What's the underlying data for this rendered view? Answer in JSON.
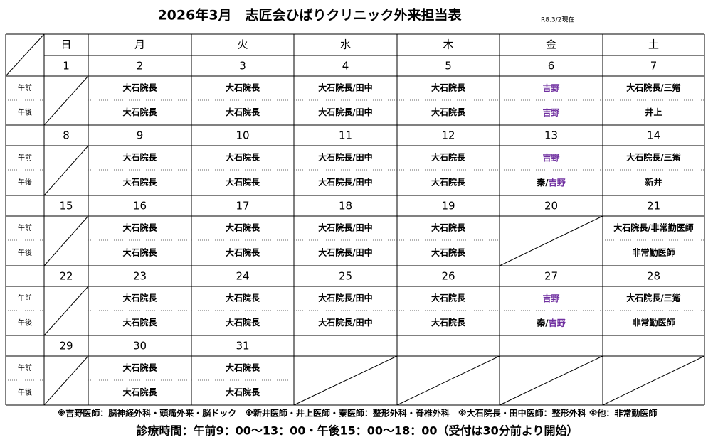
{
  "title": "2026年3月　志匠会ひばりクリニック外来担当表",
  "updated": "R8.3/2現在",
  "weekdays": [
    {
      "text": "日",
      "color": "#e03030"
    },
    "月",
    "火",
    "水",
    "木",
    "金",
    {
      "text": "土",
      "color": "#2e75b6"
    }
  ],
  "period_labels": [
    "午前",
    "午後"
  ],
  "weeks": [
    {
      "days": [
        {
          "text": "1",
          "color": "#e03030"
        },
        "2",
        "3",
        "4",
        "5",
        "6",
        {
          "text": "7",
          "color": "#2e75b6"
        }
      ],
      "am": [
        null,
        "大石院長",
        "大石院長",
        "大石院長/田中",
        "大石院長",
        [
          {
            "text": "吉野",
            "color": "#7030a0"
          }
        ],
        "大石院長/三觜"
      ],
      "pm": [
        null,
        "大石院長",
        "大石院長",
        "大石院長/田中",
        "大石院長",
        [
          {
            "text": "吉野",
            "color": "#7030a0"
          }
        ],
        "井上"
      ]
    },
    {
      "days": [
        {
          "text": "8",
          "color": "#e03030"
        },
        "9",
        "10",
        "11",
        "12",
        "13",
        {
          "text": "14",
          "color": "#2e75b6"
        }
      ],
      "am": [
        null,
        "大石院長",
        "大石院長",
        "大石院長/田中",
        "大石院長",
        [
          {
            "text": "吉野",
            "color": "#7030a0"
          }
        ],
        "大石院長/三觜"
      ],
      "pm": [
        null,
        "大石院長",
        "大石院長",
        "大石院長/田中",
        "大石院長",
        [
          "秦/",
          {
            "text": "吉野",
            "color": "#7030a0"
          }
        ],
        "新井"
      ]
    },
    {
      "days": [
        {
          "text": "15",
          "color": "#e03030"
        },
        "16",
        "17",
        "18",
        "19",
        {
          "text": "20",
          "color": "#e03030"
        },
        {
          "text": "21",
          "color": "#2e75b6"
        }
      ],
      "am": [
        null,
        "大石院長",
        "大石院長",
        "大石院長/田中",
        "大石院長",
        null,
        "大石院長/非常勤医師"
      ],
      "pm": [
        null,
        "大石院長",
        "大石院長",
        "大石院長/田中",
        "大石院長",
        null,
        "非常勤医師"
      ]
    },
    {
      "days": [
        {
          "text": "22",
          "color": "#e03030"
        },
        "23",
        "24",
        "25",
        "26",
        "27",
        {
          "text": "28",
          "color": "#2e75b6"
        }
      ],
      "am": [
        null,
        "大石院長",
        "大石院長",
        "大石院長/田中",
        "大石院長",
        [
          {
            "text": "吉野",
            "color": "#7030a0"
          }
        ],
        "大石院長/三觜"
      ],
      "pm": [
        null,
        "大石院長",
        "大石院長",
        "大石院長/田中",
        "大石院長",
        [
          "秦/",
          {
            "text": "吉野",
            "color": "#7030a0"
          }
        ],
        "非常勤医師"
      ]
    },
    {
      "days": [
        {
          "text": "29",
          "color": "#e03030"
        },
        "30",
        "31",
        null,
        null,
        null,
        null
      ],
      "am": [
        null,
        "大石院長",
        "大石院長",
        null,
        null,
        null,
        null
      ],
      "pm": [
        null,
        "大石院長",
        "大石院長",
        null,
        null,
        null,
        null
      ]
    }
  ],
  "notes": "※吉野医師：脳神経外科・頭痛外来・脳ドック　※新井医師・井上医師・秦医師：整形外科・脊椎外科　※大石院長・田中医師：整形外科 ※他：非常勤医師",
  "hours": {
    "text": "診療時間：午前9：00～13：00・午後15：00～18：00（受付は30分前より開始）",
    "color": "#e02020"
  }
}
